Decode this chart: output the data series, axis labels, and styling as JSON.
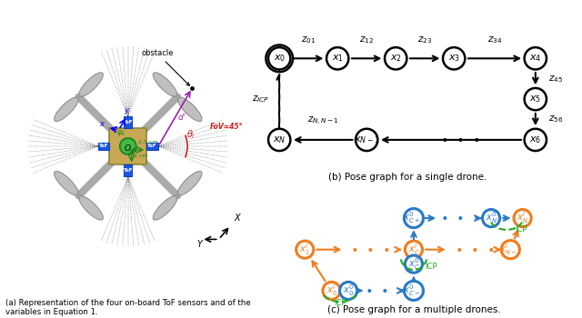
{
  "fig_width": 6.4,
  "fig_height": 3.5,
  "dpi": 100,
  "background": "#ffffff",
  "caption_a": "(a) Representation of the four on-board ToF sensors and of the\nvariables in Equation 1.",
  "caption_b": "(b) Pose graph for a single drone.",
  "caption_c": "(c) Pose graph for a multiple drones.",
  "multi_color_0": "#2979c7",
  "multi_color_1": "#f07c1e",
  "multi_green": "#22aa22"
}
